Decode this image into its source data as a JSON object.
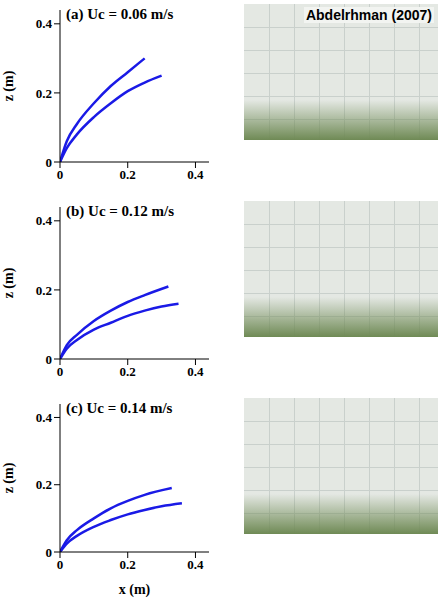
{
  "chart_data": [
    {
      "type": "line",
      "title": "(a) Uc = 0.06 m/s",
      "ylabel": "z (m)",
      "annotations": [
        "Abdelrhman (2007)"
      ],
      "xlim": [
        0,
        0.44
      ],
      "xticks": [
        0,
        0.2,
        0.4
      ],
      "ylim": [
        0,
        0.44
      ],
      "yticks": [
        0,
        0.2,
        0.4
      ],
      "series": [
        {
          "color": "#1a1ae6",
          "x": [
            0,
            0.02,
            0.05,
            0.1,
            0.15,
            0.2,
            0.25
          ],
          "values": [
            0,
            0.06,
            0.11,
            0.17,
            0.22,
            0.26,
            0.3
          ]
        },
        {
          "color": "#1a1ae6",
          "x": [
            0,
            0.02,
            0.05,
            0.1,
            0.15,
            0.2,
            0.25,
            0.3
          ],
          "values": [
            0,
            0.04,
            0.08,
            0.13,
            0.17,
            0.205,
            0.23,
            0.25
          ]
        }
      ]
    },
    {
      "type": "line",
      "title": "(b) Uc = 0.12 m/s",
      "ylabel": "z (m)",
      "xlim": [
        0,
        0.44
      ],
      "xticks": [
        0,
        0.2,
        0.4
      ],
      "ylim": [
        0,
        0.44
      ],
      "yticks": [
        0,
        0.2,
        0.4
      ],
      "series": [
        {
          "color": "#1a1ae6",
          "x": [
            0,
            0.02,
            0.05,
            0.1,
            0.15,
            0.2,
            0.25,
            0.32
          ],
          "values": [
            0,
            0.04,
            0.07,
            0.11,
            0.14,
            0.165,
            0.185,
            0.21
          ]
        },
        {
          "color": "#1a1ae6",
          "x": [
            0,
            0.02,
            0.05,
            0.1,
            0.15,
            0.2,
            0.25,
            0.3,
            0.35
          ],
          "values": [
            0,
            0.03,
            0.055,
            0.085,
            0.105,
            0.125,
            0.14,
            0.152,
            0.16
          ]
        }
      ]
    },
    {
      "type": "line",
      "title": "(c) Uc = 0.14 m/s",
      "ylabel": "z (m)",
      "xlabel": "x (m)",
      "xlim": [
        0,
        0.44
      ],
      "xticks": [
        0,
        0.2,
        0.4
      ],
      "ylim": [
        0,
        0.44
      ],
      "yticks": [
        0,
        0.2,
        0.4
      ],
      "series": [
        {
          "color": "#1a1ae6",
          "x": [
            0,
            0.02,
            0.05,
            0.1,
            0.15,
            0.2,
            0.25,
            0.33
          ],
          "values": [
            0,
            0.035,
            0.065,
            0.1,
            0.13,
            0.152,
            0.17,
            0.19
          ]
        },
        {
          "color": "#1a1ae6",
          "x": [
            0,
            0.02,
            0.05,
            0.1,
            0.15,
            0.2,
            0.25,
            0.3,
            0.36
          ],
          "values": [
            0,
            0.025,
            0.048,
            0.075,
            0.095,
            0.112,
            0.125,
            0.136,
            0.145
          ]
        }
      ]
    }
  ]
}
